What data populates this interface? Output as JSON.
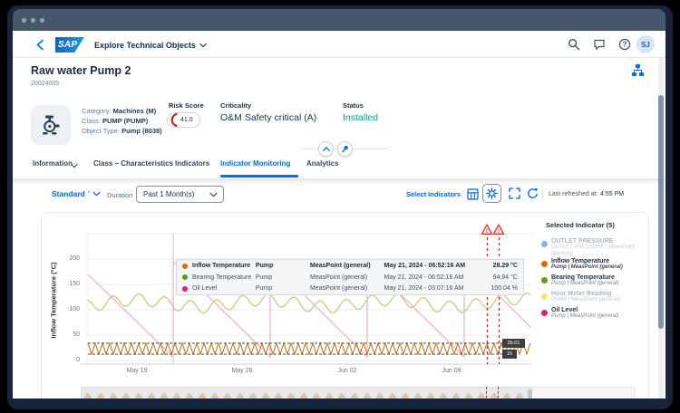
{
  "shell": {
    "logo_text": "SAP",
    "app_title": "Explore Technical Objects",
    "avatar": "SJ"
  },
  "header": {
    "title": "Raw water Pump 2",
    "subtitle": "20024005",
    "attributes": [
      {
        "label": "Category:",
        "value": "Machines (M)"
      },
      {
        "label": "Class:",
        "value": "PUMP (PUMP)"
      },
      {
        "label": "Object Type:",
        "value": "Pump (8038)"
      }
    ],
    "risk_score": {
      "label": "Risk Score",
      "value": "41.0",
      "accent_color": "#cc1f1f"
    },
    "criticality": {
      "label": "Criticality",
      "value": "O&M Safety critical (A)"
    },
    "status": {
      "label": "Status",
      "value": "Installed",
      "color": "#049f9a"
    }
  },
  "tabs": [
    {
      "label": "Information"
    },
    {
      "label": "Class – Characteristics"
    },
    {
      "label": "Indicators"
    },
    {
      "label": "Indicator Monitoring"
    },
    {
      "label": "Analytics"
    }
  ],
  "toolbar": {
    "view_name": "Standard",
    "view_marker": "*",
    "duration_label": "Duration",
    "duration_value": "Past 1 Month(s)",
    "select_indicators": "Select Indicators",
    "last_refreshed_label": "Last refreshed at:",
    "last_refreshed_value": "4:55 PM"
  },
  "chart": {
    "y_axis_title": "Inflow Temperature (°C)",
    "y_ticks": [
      "200",
      "150",
      "100",
      "50",
      "0"
    ],
    "x_ticks": [
      "May 19",
      "May 26",
      "Jun 02",
      "Jun 09"
    ],
    "thresholds": [
      {
        "label": "35.01"
      },
      {
        "label": "15"
      }
    ],
    "alert_glyph": "!",
    "tooltip": {
      "rows": [
        {
          "name": "Inflow Temperature",
          "object": "Pump",
          "measpoint": "MeasPoint (general)",
          "timestamp": "May 21, 2024 - 06:52:16 AM",
          "value": "28.29 °C",
          "color": "#e76500"
        },
        {
          "name": "Bearing Temperature",
          "object": "Pump",
          "measpoint": "MeasPoint (general)",
          "timestamp": "May 21, 2024 - 06:52:16 AM",
          "value": "94.94 °C",
          "color": "#5aa00a"
        },
        {
          "name": "Oil Level",
          "object": "Pump",
          "measpoint": "MeasPoint (general)",
          "timestamp": "May 21, 2024 - 03:07:16 AM",
          "value": "100.04 %",
          "color": "#e21a7c"
        }
      ]
    }
  },
  "legend": {
    "title": "Selected Indicator (5)",
    "items": [
      {
        "name": "OUTLET PRESSURE",
        "sub": "OUTLET PRESSURE | MeasPoint (general)",
        "color": "#7fb4f2",
        "state": "dimmed"
      },
      {
        "name": "Inflow Temperature",
        "sub": "Pump | MeasPoint (general)",
        "color": "#e76500",
        "state": "focused"
      },
      {
        "name": "Bearing Temperature",
        "sub": "Pump | MeasPoint (general)",
        "color": "#5aa00a",
        "state": "active"
      },
      {
        "name": "Hour Meter Reading",
        "sub": "PUMP | MeasPoint (general)",
        "color": "#f0dd52",
        "state": "dimmed"
      },
      {
        "name": "Oil Level",
        "sub": "Pump | MeasPoint (general)",
        "color": "#e21a7c",
        "state": "active"
      }
    ]
  },
  "chart_data": {
    "type": "line",
    "title": "Indicator Monitoring",
    "ylabel": "Inflow Temperature (°C)",
    "ylim": [
      0,
      200
    ],
    "y_ticks": [
      0,
      50,
      100,
      150,
      200
    ],
    "x_ticks": [
      "May 19",
      "May 26",
      "Jun 02",
      "Jun 09"
    ],
    "grid": "horizontal",
    "legend_position": "right",
    "series": [
      {
        "name": "OUTLET PRESSURE",
        "source": "OUTLET PRESSURE | MeasPoint (general)",
        "color": "#7fb4f2",
        "visible": false
      },
      {
        "name": "Inflow Temperature",
        "source": "Pump | MeasPoint (general)",
        "color": "#e76500",
        "line_color": "#bf7c20",
        "unit": "°C",
        "pattern": "fast zigzag oscillating between the two thresholds (~15 to ~35)",
        "latest": {
          "timestamp": "May 21, 2024 - 06:52:16 AM",
          "value": 28.29
        },
        "visible": true,
        "focused": true
      },
      {
        "name": "Bearing Temperature",
        "source": "Pump | MeasPoint (general)",
        "color": "#5aa00a",
        "line_color": "#c2ce85",
        "unit": "°C",
        "pattern": "irregular wavy line roughly between 90 and 150",
        "latest": {
          "timestamp": "May 21, 2024 - 06:52:16 AM",
          "value": 94.94
        },
        "visible": true
      },
      {
        "name": "Hour Meter Reading",
        "source": "PUMP | MeasPoint (general)",
        "color": "#f0dd52",
        "visible": false
      },
      {
        "name": "Oil Level",
        "source": "Pump | MeasPoint (general)",
        "color": "#e21a7c",
        "line_color": "#f3aac6",
        "unit": "%",
        "pattern": "descending sawtooth from ~190 to ~10 resetting every ~6-7 days",
        "latest": {
          "timestamp": "May 21, 2024 - 03:07:16 AM",
          "value": 100.04
        },
        "visible": true
      }
    ],
    "thresholds": [
      {
        "value": 35.01,
        "label": "35.01"
      },
      {
        "value": 15,
        "label": "15"
      }
    ],
    "alerts": {
      "count": 2,
      "position": "two red dashed vertical lines with warning triangles around Jun 11-12"
    },
    "hover_line_date": "May 21, 2024"
  }
}
